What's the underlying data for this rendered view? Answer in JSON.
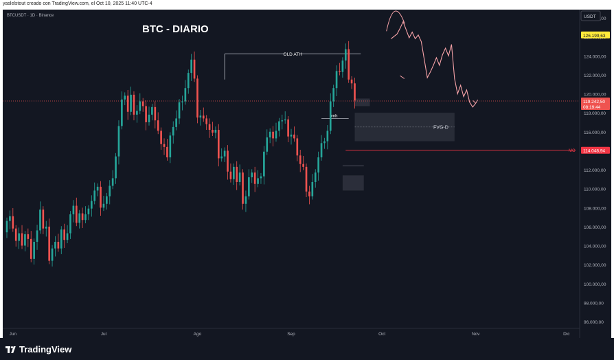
{
  "header": {
    "credit": "yaslelstout creado con TradingView.com, el Oct 10, 2025 11:40 UTC-4"
  },
  "footer": {
    "brand": "TradingView"
  },
  "chart_data": {
    "type": "candlestick",
    "symbol_label": "BTCUSDT · 1D · Binance",
    "title": "BTC - DIARIO",
    "currency": "USDT",
    "ylim": [
      96000,
      128000
    ],
    "yticks": [
      96000,
      98000,
      100000,
      102000,
      104000,
      106000,
      108000,
      110000,
      112000,
      114000,
      116000,
      118000,
      120000,
      122000,
      124000,
      126000,
      128000
    ],
    "ytick_labels": [
      "96.000,00",
      "98.000,00",
      "100.000,00",
      "102.000,00",
      "104.000,00",
      "106.000,00",
      "108.000,00",
      "110.000,00",
      "112.000,00",
      "114.000,00",
      "116.000,00",
      "118.000,00",
      "120.000,00",
      "122.000,00",
      "124.000,00",
      "126.000,00",
      "128.000,00"
    ],
    "x_labels": [
      {
        "label": "Jun",
        "day": 2
      },
      {
        "label": "Jul",
        "day": 32
      },
      {
        "label": "Ago",
        "day": 63
      },
      {
        "label": "Sep",
        "day": 94
      },
      {
        "label": "Oct",
        "day": 124
      },
      {
        "label": "Nov",
        "day": 155
      },
      {
        "label": "Dic",
        "day": 185
      }
    ],
    "closes": [
      106600,
      107100,
      105800,
      104500,
      105300,
      104000,
      105200,
      104700,
      102600,
      104400,
      105600,
      107800,
      105800,
      106000,
      102400,
      103700,
      104400,
      103700,
      105700,
      104600,
      105300,
      107300,
      108200,
      106400,
      107400,
      106700,
      107300,
      107900,
      108700,
      109800,
      110200,
      108000,
      108400,
      109200,
      110300,
      111100,
      113400,
      116600,
      119400,
      119800,
      118100,
      119900,
      117800,
      118200,
      119200,
      118700,
      117000,
      117800,
      118600,
      117200,
      116100,
      114700,
      114400,
      113300,
      115600,
      116500,
      117400,
      119100,
      119200,
      120600,
      122200,
      123600,
      121600,
      117500,
      117700,
      117400,
      116800,
      116200,
      115900,
      116200,
      113200,
      113400,
      114000,
      111800,
      111000,
      112300,
      110700,
      111700,
      108400,
      109200,
      111200,
      111700,
      110500,
      111100,
      111300,
      113900,
      115400,
      116000,
      115300,
      116100,
      117100,
      117200,
      117300,
      115500,
      115700,
      115300,
      113500,
      112600,
      112300,
      109700,
      109200,
      110700,
      111700,
      113300,
      114800,
      115000,
      116100,
      119200,
      120600,
      122400,
      122300,
      123500,
      124700,
      121500,
      121100,
      119300
    ],
    "overlays": {
      "old_ath_label": "OLD ATH",
      "old_ath_price": 124200,
      "pmh_label": "pmh",
      "pmh_price": 117400,
      "fvg_label": "FVG-D",
      "fvg_range": [
        115000,
        118000
      ],
      "mo_label": "MO",
      "current_price_label": "119.242,50",
      "countdown_label": "08:19:44",
      "target_price_label": "126.199,63",
      "mo_price_label": "114.048,94",
      "current_price": 119242.5,
      "target_price": 126199.63,
      "mo_price": 114048.94,
      "projection": [
        [
          127,
          125800
        ],
        [
          129,
          126300
        ],
        [
          130,
          126900
        ],
        [
          131,
          127600
        ],
        [
          133,
          125900
        ],
        [
          134,
          126500
        ],
        [
          135,
          125800
        ],
        [
          136,
          126200
        ],
        [
          137,
          125500
        ],
        [
          139,
          121700
        ],
        [
          140,
          122300
        ],
        [
          141,
          123000
        ],
        [
          142,
          123800
        ],
        [
          143,
          123000
        ],
        [
          144,
          124100
        ],
        [
          145,
          124800
        ],
        [
          146,
          124000
        ],
        [
          147,
          125200
        ],
        [
          148,
          121600
        ],
        [
          149,
          120000
        ],
        [
          150,
          120900
        ],
        [
          151,
          119700
        ],
        [
          152,
          120400
        ],
        [
          153,
          119100
        ],
        [
          154,
          118600
        ],
        [
          155,
          119000
        ]
      ]
    },
    "colors": {
      "up": "#26a69a",
      "down": "#ef5350",
      "bg": "#131722",
      "mo_line": "#f23645",
      "target_badge": "#ffeb3b",
      "projection": "#f7a3a8"
    }
  }
}
